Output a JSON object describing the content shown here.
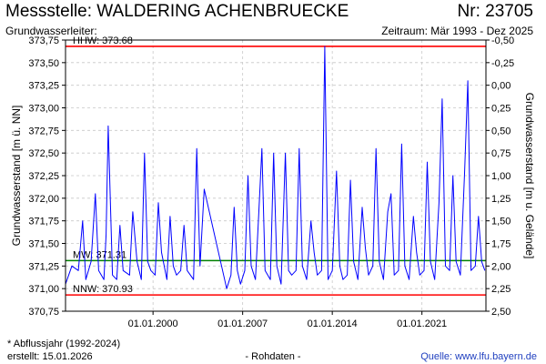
{
  "header": {
    "title": "Messstelle: WALDERING ACHENBRUECKE",
    "nr": "Nr: 23705",
    "aquifer": "Grundwasserleiter:",
    "period": "Zeitraum: Mär 1993 - Dez 2025"
  },
  "footer": {
    "note": "* Abflussjahr (1992-2024)",
    "created": "erstellt:  15.01.2026",
    "rohdaten": "- Rohdaten -",
    "source": "Quelle:  www.lfu.bayern.de"
  },
  "chart_data": {
    "type": "line",
    "ylabel": "Grundwasserstand [m ü. NN]",
    "y2label": "Grundwasserstand [m u. Gelände]",
    "ylim": [
      370.75,
      373.75
    ],
    "y_ticks": [
      "370,75",
      "371,00",
      "371,25",
      "371,50",
      "371,75",
      "372,00",
      "372,25",
      "372,50",
      "372,75",
      "373,00",
      "373,25",
      "373,50",
      "373,75"
    ],
    "y2_ticks": [
      "-0,50",
      "-0,25",
      "0,00",
      "0,25",
      "0,50",
      "0,75",
      "1,00",
      "1,25",
      "1,50",
      "1,75",
      "2,00",
      "2,25",
      "2,50"
    ],
    "xlim": [
      "1993-03-01",
      "2025-12-31"
    ],
    "x_ticks": [
      "01.01.2000",
      "01.01.2007",
      "01.01.2014",
      "01.01.2021"
    ],
    "grid": true,
    "reference_lines": [
      {
        "name": "HHW",
        "label": "HHW: 373.68",
        "value": 373.68,
        "color": "#ff0000"
      },
      {
        "name": "MW",
        "label": "MW: 371.31",
        "value": 371.31,
        "color": "#008000"
      },
      {
        "name": "NNW",
        "label": "NNW: 370.93",
        "value": 370.93,
        "color": "#ff0000"
      }
    ],
    "series": [
      {
        "color": "#0000ff",
        "x": [
          "1993-03",
          "1993-09",
          "1994-03",
          "1994-07",
          "1994-10",
          "1995-03",
          "1995-07",
          "1995-10",
          "1996-03",
          "1996-05",
          "1996-07",
          "1996-11",
          "1997-03",
          "1997-06",
          "1997-09",
          "1998-03",
          "1998-06",
          "1998-10",
          "1999-02",
          "1999-05",
          "1999-08",
          "1999-11",
          "2000-03",
          "2000-06",
          "2000-09",
          "2001-02",
          "2001-05",
          "2001-08",
          "2001-11",
          "2002-03",
          "2002-06",
          "2002-09",
          "2003-03",
          "2003-06",
          "2003-09",
          "2004-01",
          "2005-10",
          "2006-02",
          "2006-05",
          "2006-08",
          "2006-11",
          "2007-03",
          "2007-06",
          "2007-09",
          "2008-01",
          "2008-04",
          "2008-07",
          "2008-10",
          "2009-03",
          "2009-06",
          "2009-09",
          "2010-01",
          "2010-05",
          "2010-08",
          "2010-11",
          "2011-03",
          "2011-06",
          "2011-09",
          "2012-01",
          "2012-05",
          "2012-08",
          "2012-11",
          "2013-03",
          "2013-06",
          "2013-09",
          "2014-01",
          "2014-05",
          "2014-08",
          "2014-11",
          "2015-03",
          "2015-06",
          "2015-09",
          "2016-01",
          "2016-05",
          "2016-08",
          "2016-11",
          "2017-03",
          "2017-06",
          "2017-09",
          "2018-01",
          "2018-05",
          "2018-08",
          "2018-11",
          "2019-03",
          "2019-06",
          "2019-09",
          "2020-01",
          "2020-05",
          "2020-08",
          "2020-11",
          "2021-03",
          "2021-06",
          "2021-09",
          "2022-01",
          "2022-05",
          "2022-08",
          "2022-11",
          "2023-03",
          "2023-06",
          "2023-09",
          "2024-01",
          "2024-05",
          "2024-08",
          "2024-11",
          "2025-03",
          "2025-06",
          "2025-09",
          "2025-12"
        ],
        "values": [
          371.05,
          371.25,
          371.2,
          371.75,
          371.1,
          371.3,
          372.05,
          371.2,
          371.1,
          371.6,
          372.8,
          371.15,
          371.1,
          371.7,
          371.2,
          371.15,
          371.85,
          371.3,
          371.1,
          372.5,
          371.3,
          371.2,
          371.15,
          371.95,
          371.4,
          371.1,
          371.8,
          371.25,
          371.15,
          371.2,
          371.7,
          371.2,
          371.1,
          372.55,
          371.25,
          372.1,
          371.0,
          371.15,
          371.9,
          371.2,
          371.05,
          371.2,
          372.25,
          371.25,
          371.1,
          371.8,
          372.55,
          371.2,
          371.1,
          372.5,
          371.25,
          371.05,
          372.5,
          371.2,
          371.15,
          371.2,
          372.55,
          371.25,
          371.1,
          371.75,
          371.4,
          371.15,
          371.2,
          373.68,
          371.1,
          371.2,
          372.3,
          371.25,
          371.1,
          371.15,
          372.2,
          371.3,
          371.1,
          371.9,
          371.45,
          371.15,
          371.25,
          372.55,
          371.3,
          371.1,
          371.85,
          372.05,
          371.15,
          371.2,
          372.6,
          371.25,
          371.1,
          371.8,
          371.4,
          371.15,
          371.2,
          372.4,
          371.3,
          371.1,
          371.95,
          373.1,
          371.25,
          371.2,
          372.25,
          371.3,
          371.15,
          372.3,
          373.3,
          371.2,
          371.25,
          371.8,
          371.3,
          371.2
        ]
      }
    ]
  }
}
